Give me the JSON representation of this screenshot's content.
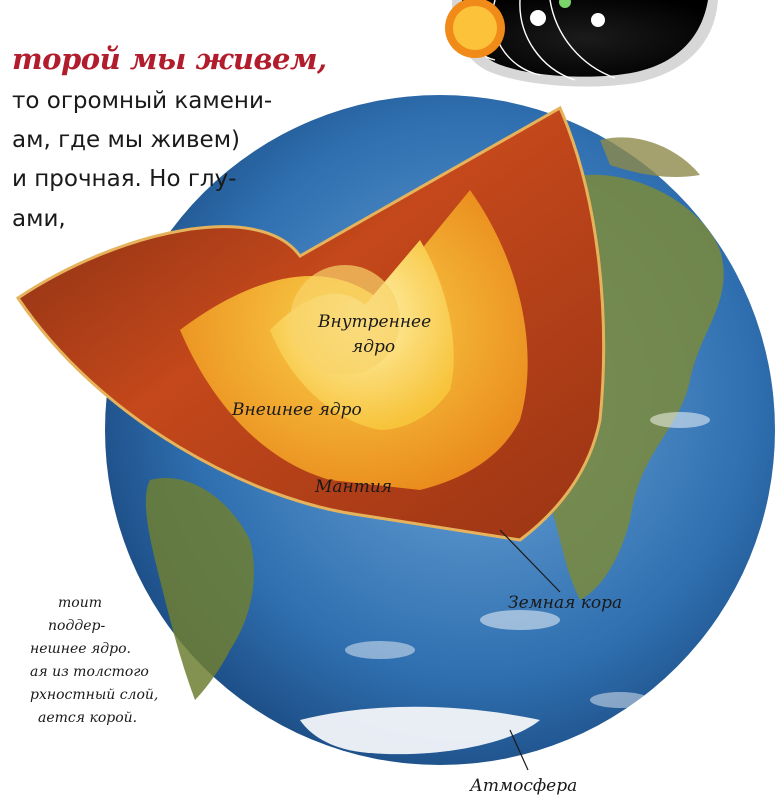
{
  "intro": {
    "heading": "торой мы живем,",
    "lines": [
      "то огромный камени-",
      "ам, где мы живем)",
      "и прочная. Но глу-",
      "ами,"
    ]
  },
  "labels": {
    "inner_core_line1": "Внутреннее",
    "inner_core_line2": "ядро",
    "outer_core": "Внешнее ядро",
    "mantle": "Мантия",
    "crust": "Земная кора",
    "atmosphere": "Атмосфера"
  },
  "side_note": {
    "lines": [
      "тоит",
      "поддер-",
      "нешнее ядро.",
      "ая из толстого",
      "рхностный слой,",
      "ается корой."
    ]
  },
  "colors": {
    "heading": "#b11d2c",
    "ocean": "#2f6fb0",
    "mantle": "#b8431c",
    "outer_core": "#f2a722",
    "inner_core": "#fde06a"
  }
}
